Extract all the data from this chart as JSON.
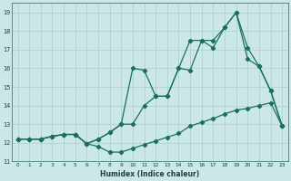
{
  "xlabel": "Humidex (Indice chaleur)",
  "bg_color": "#cce8e6",
  "grid_color": "#aacfcc",
  "line_color": "#1a7060",
  "xlim": [
    -0.5,
    23.5
  ],
  "ylim": [
    11,
    19.5
  ],
  "xticks": [
    0,
    1,
    2,
    3,
    4,
    5,
    6,
    7,
    8,
    9,
    10,
    11,
    12,
    13,
    14,
    15,
    16,
    17,
    18,
    19,
    20,
    21,
    22,
    23
  ],
  "yticks": [
    11,
    12,
    13,
    14,
    15,
    16,
    17,
    18,
    19
  ],
  "line_bottom_x": [
    0,
    1,
    2,
    3,
    4,
    5,
    6,
    7,
    8,
    9,
    10,
    11,
    12,
    13,
    14,
    15,
    16,
    17,
    18,
    19,
    20,
    21,
    22,
    23
  ],
  "line_bottom_y": [
    12.2,
    12.2,
    12.2,
    12.35,
    12.45,
    12.45,
    11.95,
    11.8,
    11.5,
    11.5,
    11.7,
    11.9,
    12.1,
    12.3,
    12.5,
    12.9,
    13.1,
    13.3,
    13.55,
    13.75,
    13.85,
    14.0,
    14.15,
    12.9
  ],
  "line_top_x": [
    0,
    1,
    2,
    3,
    4,
    5,
    6,
    7,
    8,
    9,
    10,
    11,
    12,
    13,
    14,
    15,
    16,
    17,
    18,
    19,
    20,
    21,
    22,
    23
  ],
  "line_top_y": [
    12.2,
    12.2,
    12.2,
    12.35,
    12.45,
    12.45,
    11.95,
    12.2,
    12.55,
    13.0,
    16.0,
    15.9,
    14.5,
    14.5,
    16.0,
    17.5,
    17.5,
    17.5,
    18.2,
    19.0,
    16.5,
    16.1,
    14.8,
    12.9
  ],
  "line_mid_x": [
    0,
    1,
    2,
    3,
    4,
    5,
    6,
    7,
    8,
    9,
    10,
    11,
    12,
    13,
    14,
    15,
    16,
    17,
    18,
    19,
    20,
    21,
    22,
    23
  ],
  "line_mid_y": [
    12.2,
    12.2,
    12.2,
    12.35,
    12.45,
    12.45,
    11.95,
    12.2,
    12.55,
    13.0,
    13.0,
    14.0,
    14.5,
    14.5,
    16.0,
    15.9,
    17.5,
    17.1,
    18.2,
    19.0,
    17.1,
    16.1,
    14.8,
    12.9
  ]
}
